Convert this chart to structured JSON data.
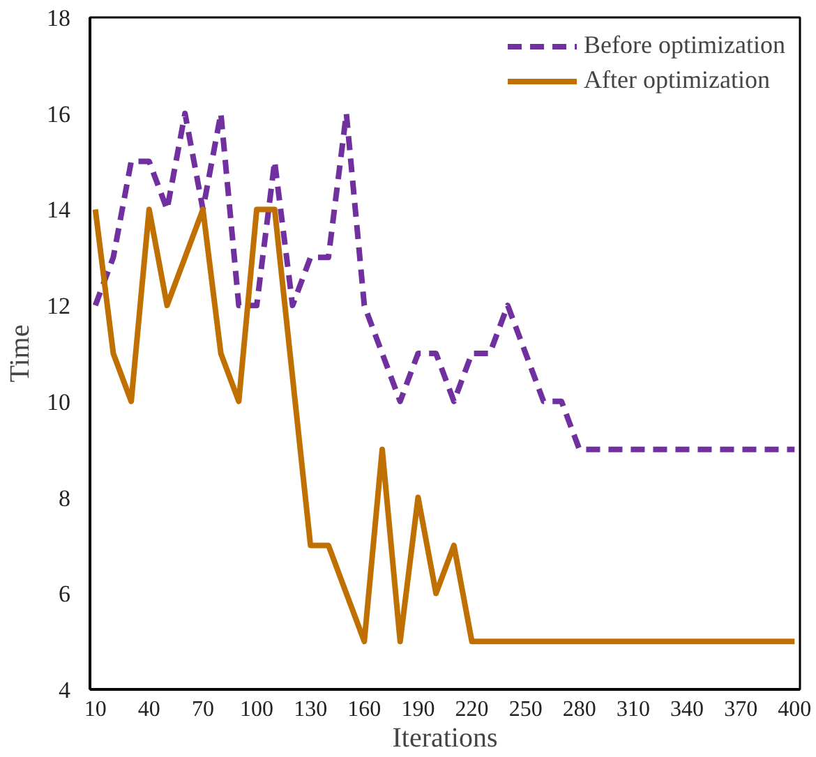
{
  "chart_data": {
    "type": "line",
    "xlabel": "Iterations",
    "ylabel": "Time",
    "categories": [
      "10",
      null,
      null,
      "40",
      null,
      null,
      "70",
      null,
      null,
      "100",
      null,
      null,
      "130",
      null,
      null,
      "160",
      null,
      null,
      "190",
      null,
      null,
      "220",
      null,
      null,
      "250",
      null,
      null,
      "280",
      null,
      null,
      "310",
      null,
      null,
      "340",
      null,
      null,
      "370",
      null,
      null,
      "400"
    ],
    "series": [
      {
        "name": "Before optimization",
        "color": "#7030a0",
        "line_style": "dashed",
        "values": [
          12,
          13,
          15,
          15,
          14,
          16,
          14,
          16,
          12,
          12,
          15,
          12,
          13,
          13,
          16,
          12,
          11,
          10,
          11,
          11,
          10,
          11,
          11,
          12,
          11,
          10,
          10,
          9,
          9,
          9,
          9,
          9,
          9,
          9,
          9,
          9,
          9,
          9,
          9,
          9
        ]
      },
      {
        "name": "After optimization",
        "color": "#c07000",
        "line_style": "solid",
        "values": [
          14,
          11,
          10,
          14,
          12,
          13,
          14,
          11,
          10,
          14,
          14,
          10.5,
          7,
          7,
          6,
          5,
          9,
          5,
          8,
          6,
          7,
          5,
          5,
          5,
          5,
          5,
          5,
          5,
          5,
          5,
          5,
          5,
          5,
          5,
          5,
          5,
          5,
          5,
          5,
          5
        ]
      }
    ],
    "ylim": [
      4,
      18
    ],
    "yticks": [
      4,
      6,
      8,
      10,
      12,
      14,
      16,
      18
    ],
    "grid": false,
    "legend": "top right"
  }
}
